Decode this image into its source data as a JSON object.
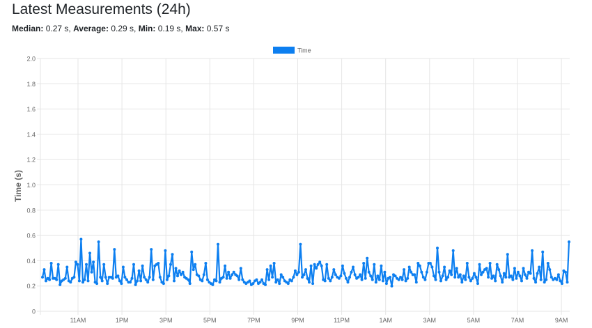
{
  "page": {
    "title": "Latest Measurements (24h)",
    "stats": {
      "median_label": "Median:",
      "median_value": "0.27 s",
      "average_label": "Average:",
      "average_value": "0.29 s",
      "min_label": "Min:",
      "min_value": "0.19 s",
      "max_label": "Max:",
      "max_value": "0.57 s"
    }
  },
  "chart_data": {
    "type": "line",
    "legend": {
      "position": "top",
      "label": "Time"
    },
    "ylabel": "Time (s)",
    "xlabel": "",
    "ylim": [
      0,
      2.0
    ],
    "yticks": [
      0,
      0.2,
      0.4,
      0.6,
      0.8,
      1.0,
      1.2,
      1.4,
      1.6,
      1.8,
      2.0
    ],
    "ytick_labels": [
      "0",
      "0.2",
      "0.4",
      "0.6",
      "0.8",
      "1.0",
      "1.2",
      "1.4",
      "1.6",
      "1.8",
      "2.0"
    ],
    "xlim": [
      "9:30",
      "9:50 next day"
    ],
    "xticks": [
      "11AM",
      "1PM",
      "3PM",
      "5PM",
      "7PM",
      "9PM",
      "11PM",
      "1AM",
      "3AM",
      "5AM",
      "7AM",
      "9AM"
    ],
    "grid": true,
    "series_color": "#0d7ff0",
    "series": [
      {
        "name": "Time",
        "values": [
          0.27,
          0.33,
          0.24,
          0.26,
          0.25,
          0.38,
          0.26,
          0.26,
          0.25,
          0.37,
          0.21,
          0.24,
          0.25,
          0.26,
          0.35,
          0.24,
          0.23,
          0.26,
          0.27,
          0.39,
          0.37,
          0.24,
          0.57,
          0.23,
          0.25,
          0.37,
          0.24,
          0.46,
          0.31,
          0.39,
          0.23,
          0.22,
          0.55,
          0.27,
          0.24,
          0.37,
          0.27,
          0.22,
          0.27,
          0.27,
          0.26,
          0.49,
          0.27,
          0.28,
          0.24,
          0.22,
          0.35,
          0.27,
          0.25,
          0.23,
          0.23,
          0.26,
          0.37,
          0.21,
          0.24,
          0.32,
          0.24,
          0.36,
          0.27,
          0.25,
          0.23,
          0.27,
          0.49,
          0.25,
          0.36,
          0.37,
          0.38,
          0.27,
          0.23,
          0.22,
          0.48,
          0.25,
          0.28,
          0.37,
          0.45,
          0.24,
          0.34,
          0.28,
          0.32,
          0.29,
          0.31,
          0.27,
          0.26,
          0.25,
          0.22,
          0.47,
          0.33,
          0.37,
          0.29,
          0.28,
          0.25,
          0.24,
          0.29,
          0.38,
          0.25,
          0.23,
          0.22,
          0.21,
          0.25,
          0.24,
          0.53,
          0.23,
          0.26,
          0.27,
          0.36,
          0.26,
          0.31,
          0.26,
          0.29,
          0.31,
          0.29,
          0.28,
          0.25,
          0.34,
          0.25,
          0.23,
          0.22,
          0.23,
          0.24,
          0.21,
          0.22,
          0.24,
          0.25,
          0.22,
          0.23,
          0.25,
          0.22,
          0.21,
          0.33,
          0.25,
          0.36,
          0.27,
          0.38,
          0.23,
          0.25,
          0.22,
          0.29,
          0.27,
          0.24,
          0.23,
          0.22,
          0.25,
          0.24,
          0.27,
          0.32,
          0.29,
          0.31,
          0.53,
          0.27,
          0.29,
          0.33,
          0.26,
          0.23,
          0.36,
          0.22,
          0.37,
          0.34,
          0.37,
          0.39,
          0.36,
          0.25,
          0.24,
          0.37,
          0.26,
          0.24,
          0.27,
          0.33,
          0.29,
          0.27,
          0.26,
          0.28,
          0.36,
          0.3,
          0.26,
          0.23,
          0.27,
          0.31,
          0.35,
          0.29,
          0.26,
          0.27,
          0.29,
          0.25,
          0.38,
          0.26,
          0.42,
          0.31,
          0.28,
          0.25,
          0.37,
          0.23,
          0.28,
          0.25,
          0.36,
          0.24,
          0.31,
          0.22,
          0.26,
          0.27,
          0.2,
          0.29,
          0.28,
          0.26,
          0.25,
          0.27,
          0.25,
          0.33,
          0.24,
          0.26,
          0.35,
          0.31,
          0.29,
          0.29,
          0.23,
          0.38,
          0.36,
          0.31,
          0.27,
          0.25,
          0.31,
          0.38,
          0.38,
          0.35,
          0.28,
          0.25,
          0.5,
          0.31,
          0.24,
          0.28,
          0.35,
          0.25,
          0.27,
          0.32,
          0.29,
          0.48,
          0.27,
          0.34,
          0.27,
          0.29,
          0.23,
          0.28,
          0.25,
          0.38,
          0.27,
          0.24,
          0.26,
          0.3,
          0.27,
          0.22,
          0.37,
          0.29,
          0.31,
          0.33,
          0.34,
          0.27,
          0.38,
          0.26,
          0.28,
          0.24,
          0.37,
          0.33,
          0.28,
          0.23,
          0.3,
          0.27,
          0.45,
          0.27,
          0.28,
          0.25,
          0.34,
          0.26,
          0.31,
          0.28,
          0.24,
          0.34,
          0.29,
          0.26,
          0.31,
          0.3,
          0.48,
          0.26,
          0.23,
          0.3,
          0.35,
          0.25,
          0.47,
          0.23,
          0.25,
          0.38,
          0.33,
          0.27,
          0.25,
          0.26,
          0.25,
          0.29,
          0.24,
          0.22,
          0.32,
          0.31,
          0.23,
          0.55
        ]
      }
    ]
  }
}
